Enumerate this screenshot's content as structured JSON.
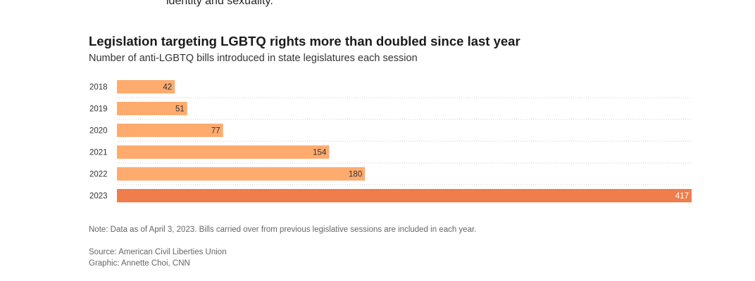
{
  "intro": {
    "text_fragment": "identity and sexuality."
  },
  "colors": {
    "bar_default": "#ffab6e",
    "bar_highlight": "#ef7e4c",
    "gridline": "#cccccc",
    "label_dark": "#333333",
    "label_light": "#ffffff"
  },
  "chart_data": {
    "type": "bar",
    "orientation": "horizontal",
    "title": "Legislation targeting LGBTQ rights more than doubled since last year",
    "subtitle": "Number of anti-LGBTQ bills introduced in state legislatures each session",
    "xlabel": "",
    "ylabel": "",
    "categories": [
      "2018",
      "2019",
      "2020",
      "2021",
      "2022",
      "2023"
    ],
    "values": [
      42,
      51,
      77,
      154,
      180,
      417
    ],
    "value_labels": [
      "42",
      "51",
      "77",
      "154",
      "180",
      "417"
    ],
    "highlight": [
      false,
      false,
      false,
      false,
      false,
      true
    ],
    "xlim": [
      0,
      417
    ],
    "grid": false,
    "legend": "none"
  },
  "footer": {
    "note": "Note: Data as of April 3, 2023. Bills carried over from previous legislative sessions are included in each year.",
    "source": "Source: American Civil Liberties Union",
    "graphic": "Graphic: Annette Choi, CNN"
  }
}
